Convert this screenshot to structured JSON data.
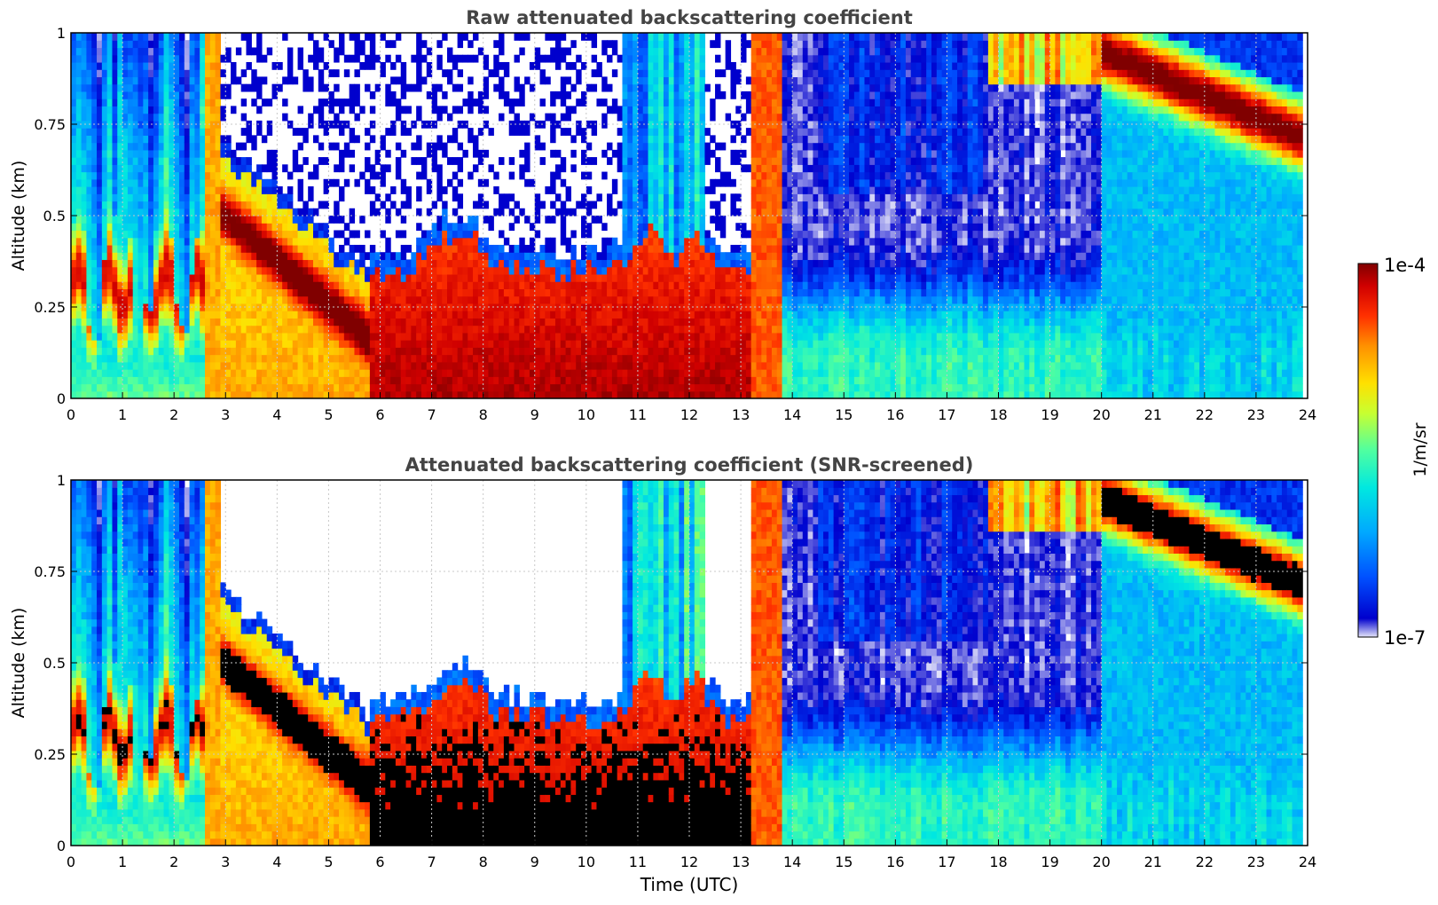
{
  "chart_data": [
    {
      "type": "heatmap",
      "title": "Raw attenuated backscattering coefficient",
      "xlabel": "",
      "ylabel": "Altitude (km)",
      "xlim": [
        0,
        24
      ],
      "ylim": [
        0,
        1
      ],
      "xticks": [
        "0",
        "1",
        "2",
        "3",
        "4",
        "5",
        "6",
        "7",
        "8",
        "9",
        "10",
        "11",
        "12",
        "13",
        "14",
        "15",
        "16",
        "17",
        "18",
        "19",
        "20",
        "21",
        "22",
        "23",
        "24"
      ],
      "yticks": [
        "0",
        "0.25",
        "0.5",
        "0.75",
        "1"
      ],
      "grid": true,
      "colorscale": "jet, log10, 1e-7 to 1e-4 (1/m/sr)",
      "features": [
        {
          "hours": [
            0,
            2.6
          ],
          "description": "variable boundary layer, red between 0.15 and 0.45 km"
        },
        {
          "hours": [
            2.6,
            2.95
          ],
          "description": "saturated column"
        },
        {
          "hours": [
            3,
            5.7
          ],
          "description": "descending layer from 0.55 to 0.15 km"
        },
        {
          "hours": [
            5.8,
            13.2
          ],
          "description": "strong layer below 0.35 km"
        },
        {
          "hours": [
            13.2,
            13.8
          ],
          "description": "saturated column"
        },
        {
          "hours": [
            13.8,
            20
          ],
          "description": "clear air, weak aerosol below 0.2 km"
        },
        {
          "hours": [
            17.8,
            20.2
          ],
          "description": "thin cloud near 0.9 to 1 km"
        },
        {
          "hours": [
            20,
            23.9
          ],
          "description": "cloud layer descending from 1.0 to 0.7 km"
        }
      ]
    },
    {
      "type": "heatmap",
      "title": "Attenuated backscattering coefficient (SNR-screened)",
      "xlabel": "Time (UTC)",
      "ylabel": "Altitude (km)",
      "xlim": [
        0,
        24
      ],
      "ylim": [
        0,
        1
      ],
      "xticks": [
        "0",
        "1",
        "2",
        "3",
        "4",
        "5",
        "6",
        "7",
        "8",
        "9",
        "10",
        "11",
        "12",
        "13",
        "14",
        "15",
        "16",
        "17",
        "18",
        "19",
        "20",
        "21",
        "22",
        "23",
        "24"
      ],
      "yticks": [
        "0",
        "0.25",
        "0.5",
        "0.75",
        "1"
      ],
      "grid": true,
      "colorscale": "jet, log10, 1e-7 to 1e-4 (1/m/sr); values above range in black; low SNR removed (white)",
      "features": [
        {
          "hours": [
            0,
            2.6
          ],
          "description": "black core between 0.17 and 0.38 km"
        },
        {
          "hours": [
            3,
            5.7
          ],
          "description": "black layer descending from 0.55 to 0.15 km"
        },
        {
          "hours": [
            5.8,
            13.2
          ],
          "description": "black layer below 0.32 km"
        },
        {
          "hours": [
            20.2,
            23.9
          ],
          "description": "black cloud layer descending from 1.0 to 0.72 km"
        }
      ]
    }
  ],
  "colorbar": {
    "max_label": "1e-4",
    "min_label": "1e-7",
    "unit_label": "1/m/sr",
    "colors": [
      "#e6e6fa",
      "#0000cd",
      "#0050ff",
      "#00a8ff",
      "#00e8e0",
      "#50ffa0",
      "#c8ff30",
      "#ffe000",
      "#ff9000",
      "#ff3000",
      "#d00000",
      "#800000"
    ]
  }
}
